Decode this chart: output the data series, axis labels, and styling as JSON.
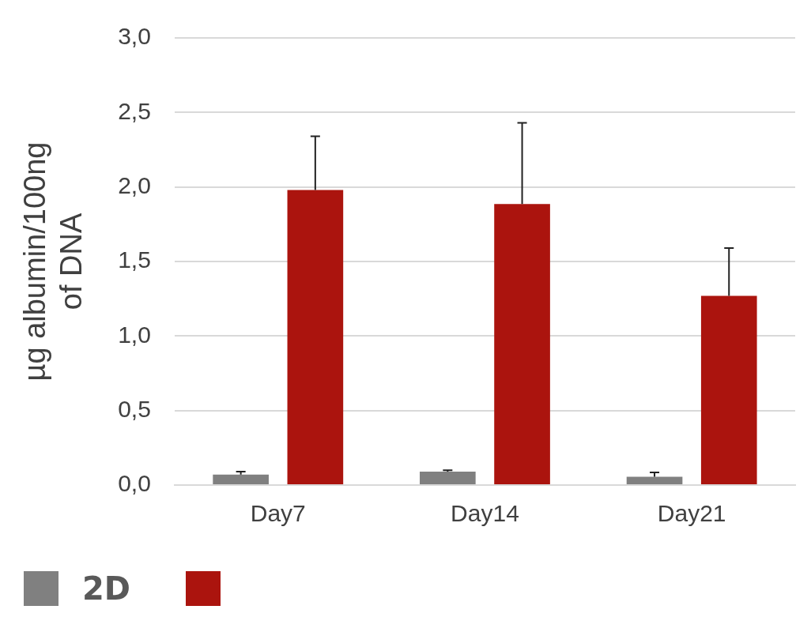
{
  "chart_data": {
    "type": "bar",
    "ylabel": "µg albumin/100ng of DNA",
    "categories": [
      "Day7",
      "Day14",
      "Day21"
    ],
    "series": [
      {
        "name": "2D",
        "color": "#808080",
        "values": [
          0.07,
          0.09,
          0.055
        ],
        "errors": [
          [
            0.07,
            0.09
          ],
          [
            0.09,
            0.1
          ],
          [
            0.055,
            0.085
          ]
        ]
      },
      {
        "color": "#ab140e",
        "values": [
          1.98,
          1.885,
          1.27
        ],
        "errors": [
          [
            1.98,
            2.34
          ],
          [
            1.885,
            2.43
          ],
          [
            1.27,
            1.59
          ]
        ]
      }
    ],
    "ylim": [
      0,
      3
    ],
    "yticks": [
      {
        "value": 0,
        "label": "0,0"
      },
      {
        "value": 0.5,
        "label": "0,5"
      },
      {
        "value": 1,
        "label": "1,0"
      },
      {
        "value": 1.5,
        "label": "1,5"
      },
      {
        "value": 2,
        "label": "2,0"
      },
      {
        "value": 2.5,
        "label": "2,5"
      },
      {
        "value": 3,
        "label": "3,0"
      }
    ],
    "grid": "y",
    "legend": "bottom left"
  }
}
